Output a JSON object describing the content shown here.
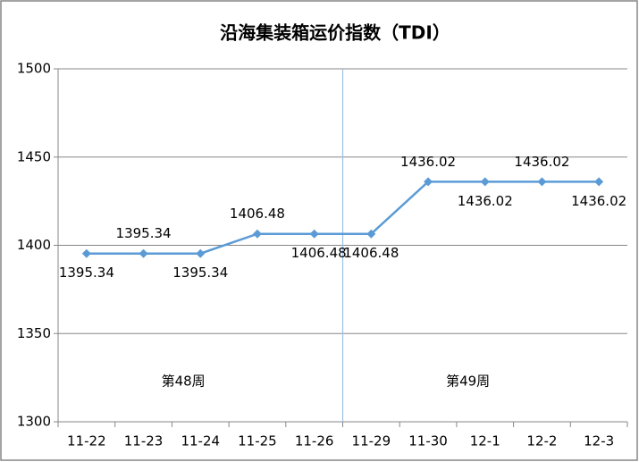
{
  "chart_data": {
    "type": "line",
    "title": "沿海集装箱运价指数（TDI）",
    "categories": [
      "11-22",
      "11-23",
      "11-24",
      "11-25",
      "11-26",
      "11-29",
      "11-30",
      "12-1",
      "12-2",
      "12-3"
    ],
    "series": [
      {
        "name": "TDI",
        "color": "#5b9bd5",
        "values": [
          1395.34,
          1395.34,
          1395.34,
          1406.48,
          1406.48,
          1406.48,
          1436.02,
          1436.02,
          1436.02,
          1436.02
        ]
      }
    ],
    "ylim": [
      1300,
      1500
    ],
    "yticks": [
      1300,
      1350,
      1400,
      1450,
      1500
    ],
    "grid": true,
    "annotations": [
      "第48周",
      "第49周"
    ]
  }
}
